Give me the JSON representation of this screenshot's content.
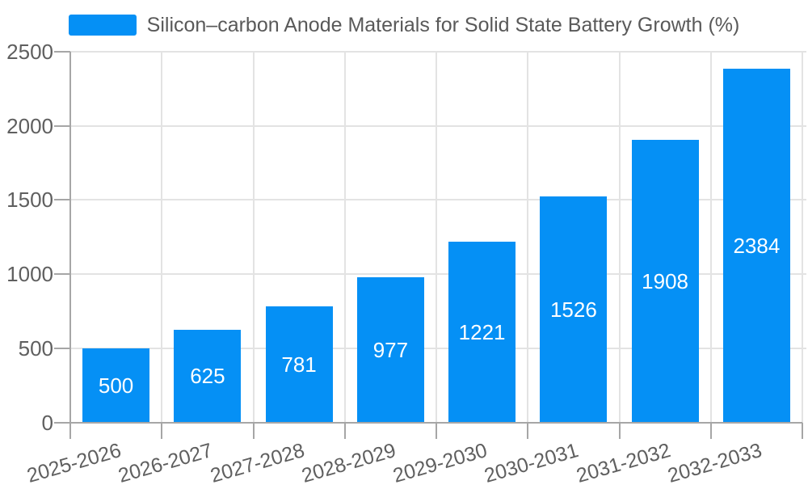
{
  "chart_data": {
    "type": "bar",
    "title": "Silicon–carbon Anode Materials for Solid State Battery Growth (%)",
    "categories": [
      "2025-2026",
      "2026-2027",
      "2027-2028",
      "2028-2029",
      "2029-2030",
      "2030-2031",
      "2031-2032",
      "2032-2033"
    ],
    "values": [
      500,
      625,
      781,
      977,
      1221,
      1526,
      1908,
      2384
    ],
    "value_labels": [
      "500",
      "625",
      "781",
      "977",
      "1221",
      "1526",
      "1908",
      "2384"
    ],
    "y_ticks": [
      0,
      500,
      1000,
      1500,
      2000,
      2500
    ],
    "y_tick_labels": [
      "0",
      "500",
      "1000",
      "1500",
      "2000",
      "2500"
    ],
    "ylim": [
      0,
      2500
    ],
    "xlabel": "",
    "ylabel": "",
    "grid": true,
    "legend_position": "top-center",
    "x_label_rotation_deg": -16,
    "colors": {
      "bar": "#0590F5",
      "bar_value_text": "#ffffff",
      "grid_line": "#e3e3e3",
      "axis_line": "#a6a6a6",
      "tick_label_text": "#5f5f5f",
      "legend_text": "#595959",
      "background": "#ffffff"
    }
  }
}
